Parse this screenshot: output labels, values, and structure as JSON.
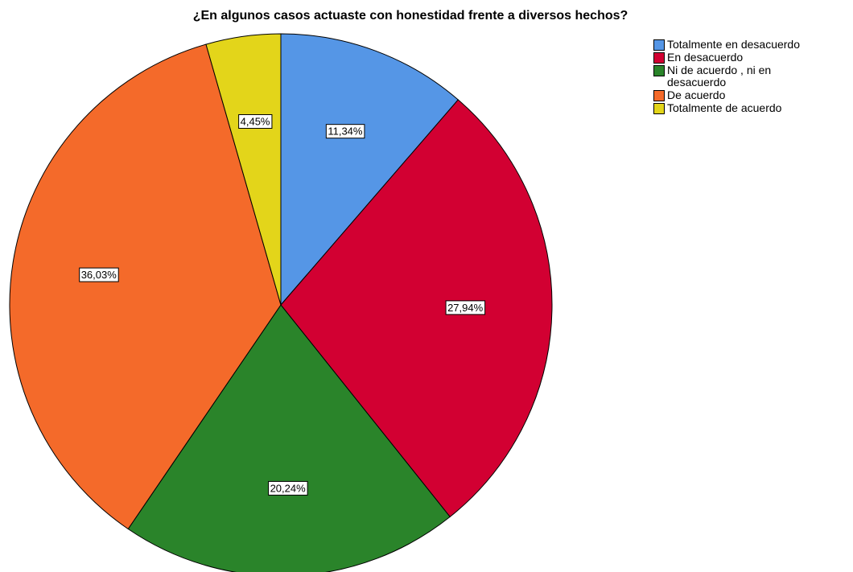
{
  "chart_data": {
    "type": "pie",
    "title": "¿En algunos casos actuaste con honestidad frente a diversos hechos?",
    "categories": [
      "Totalmente en desacuerdo",
      "En desacuerdo",
      "Ni de acuerdo , ni en desacuerdo",
      "De acuerdo",
      "Totalmente de acuerdo"
    ],
    "values": [
      11.34,
      27.94,
      20.24,
      36.03,
      4.45
    ],
    "value_labels": [
      "11,34%",
      "27,94%",
      "20,24%",
      "36,03%",
      "4,45%"
    ],
    "colors": [
      "#5596e6",
      "#d20032",
      "#2a842a",
      "#f46a2a",
      "#e3d51a"
    ],
    "legend": "right"
  }
}
